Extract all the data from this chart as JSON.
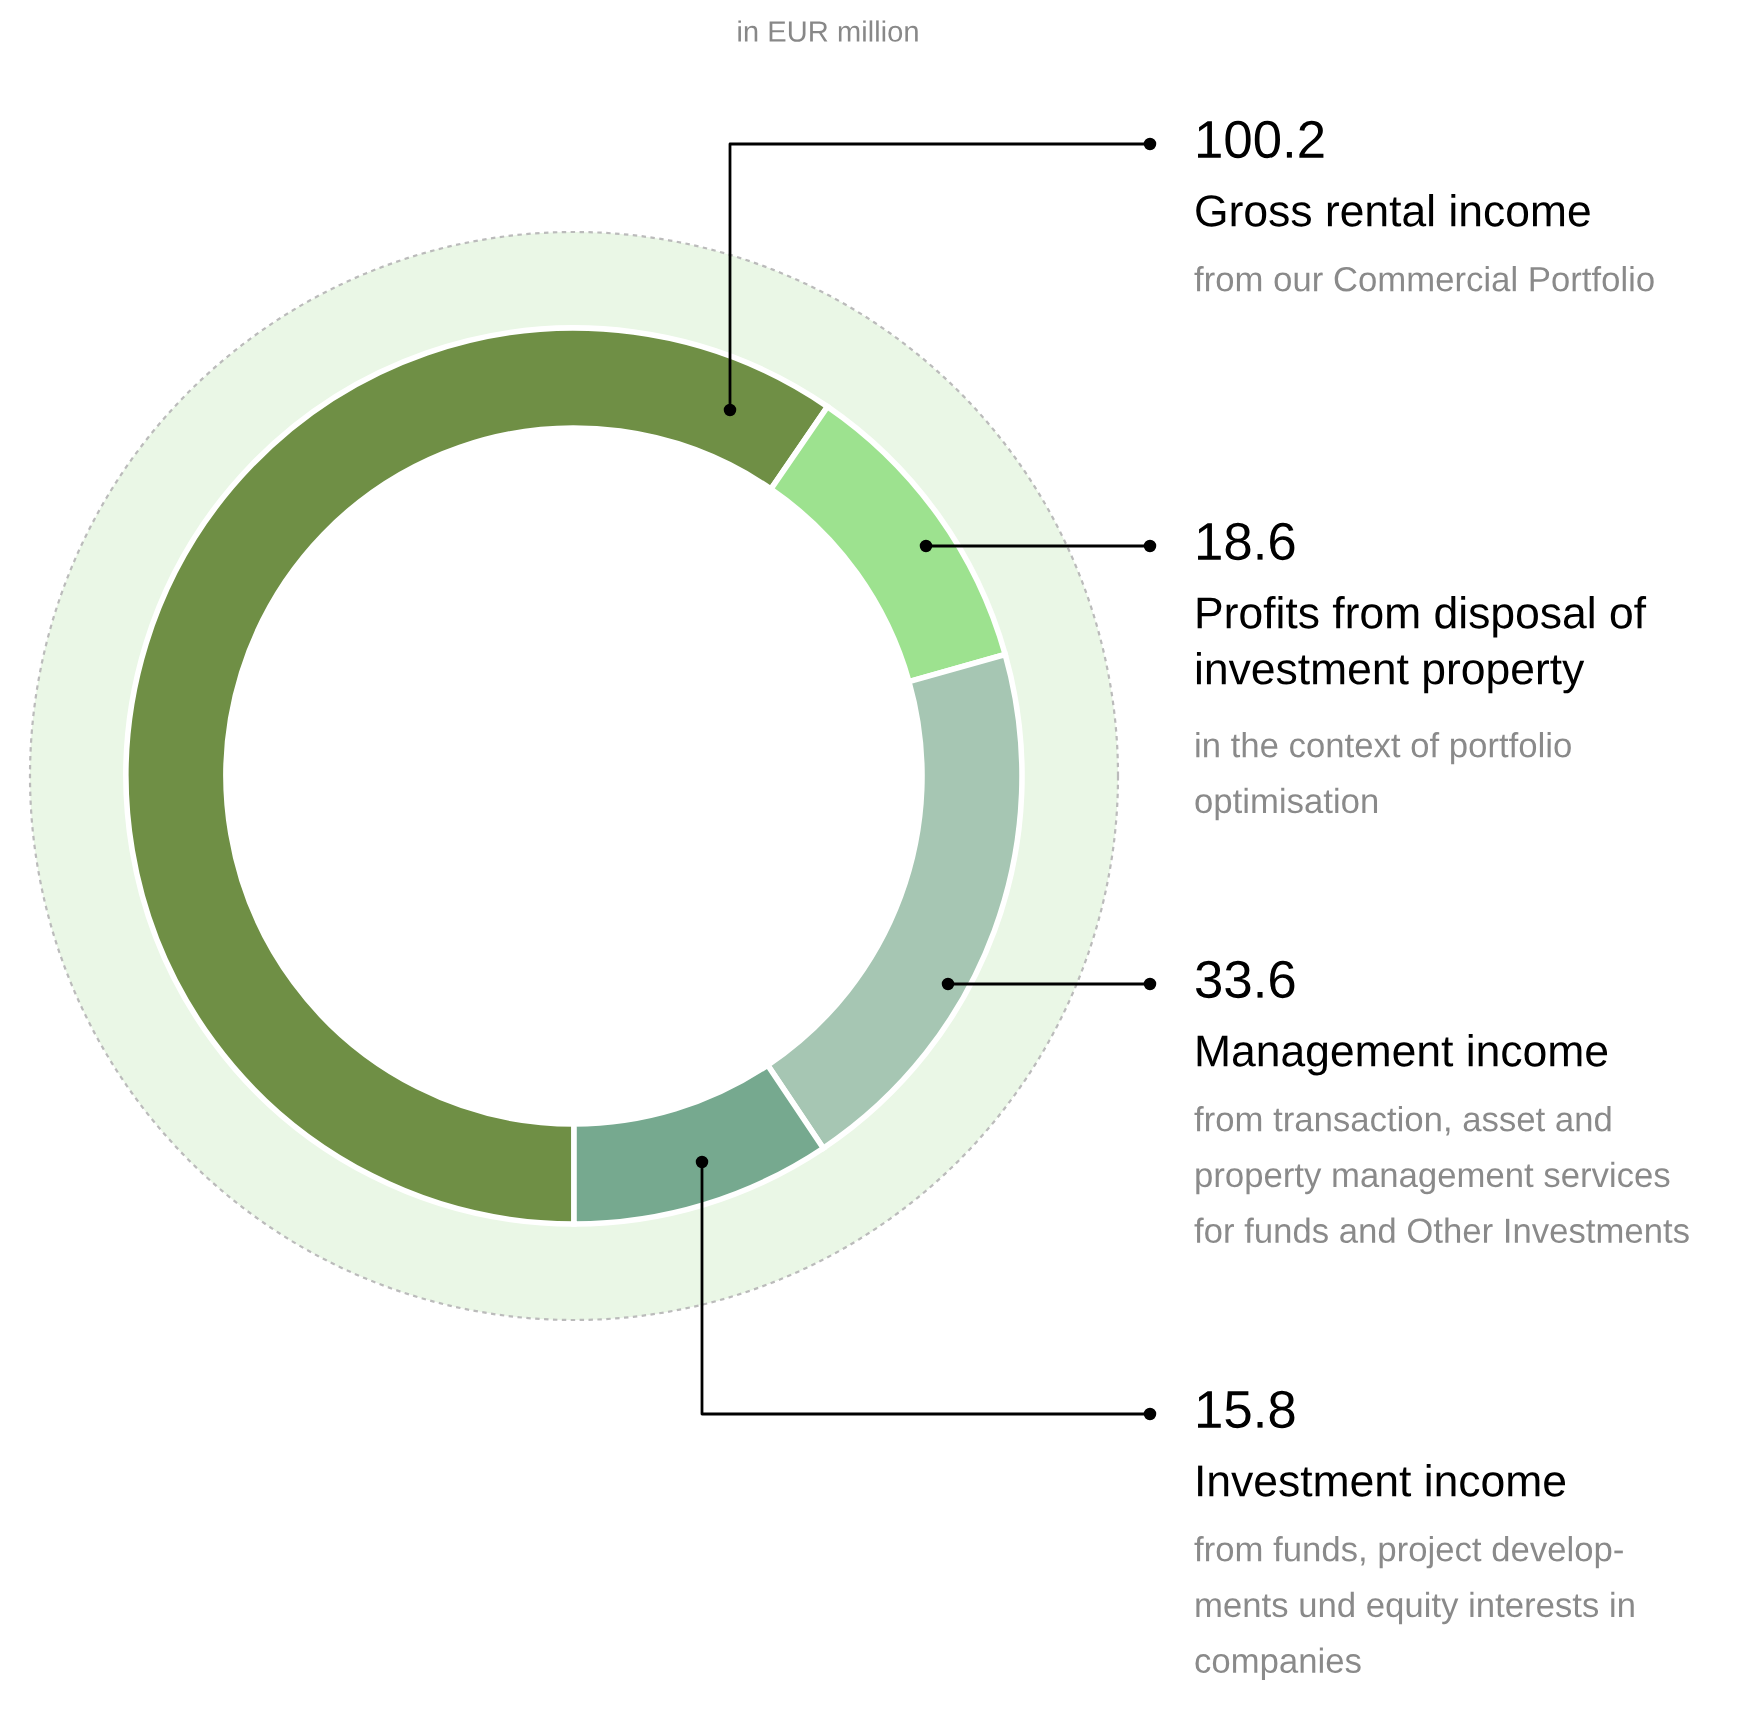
{
  "chart_data": {
    "type": "donut",
    "title": "in EUR million",
    "categories": [
      "Gross rental income",
      "Profits from disposal of\ninvestment property",
      "Management income",
      "Investment income"
    ],
    "values": [
      100.2,
      18.6,
      33.6,
      15.8
    ],
    "colors": [
      "#6f8f45",
      "#9de28f",
      "#a6c6b3",
      "#76a98f"
    ],
    "data_labels": true,
    "annotations": [
      "from our Commercial Portfolio",
      "in the context of portfolio\noptimisation",
      "from transaction, asset and\nproperty management services\nfor funds and Other Investments",
      "from funds, project develop-\nments und equity interests in\ncompanies"
    ]
  }
}
